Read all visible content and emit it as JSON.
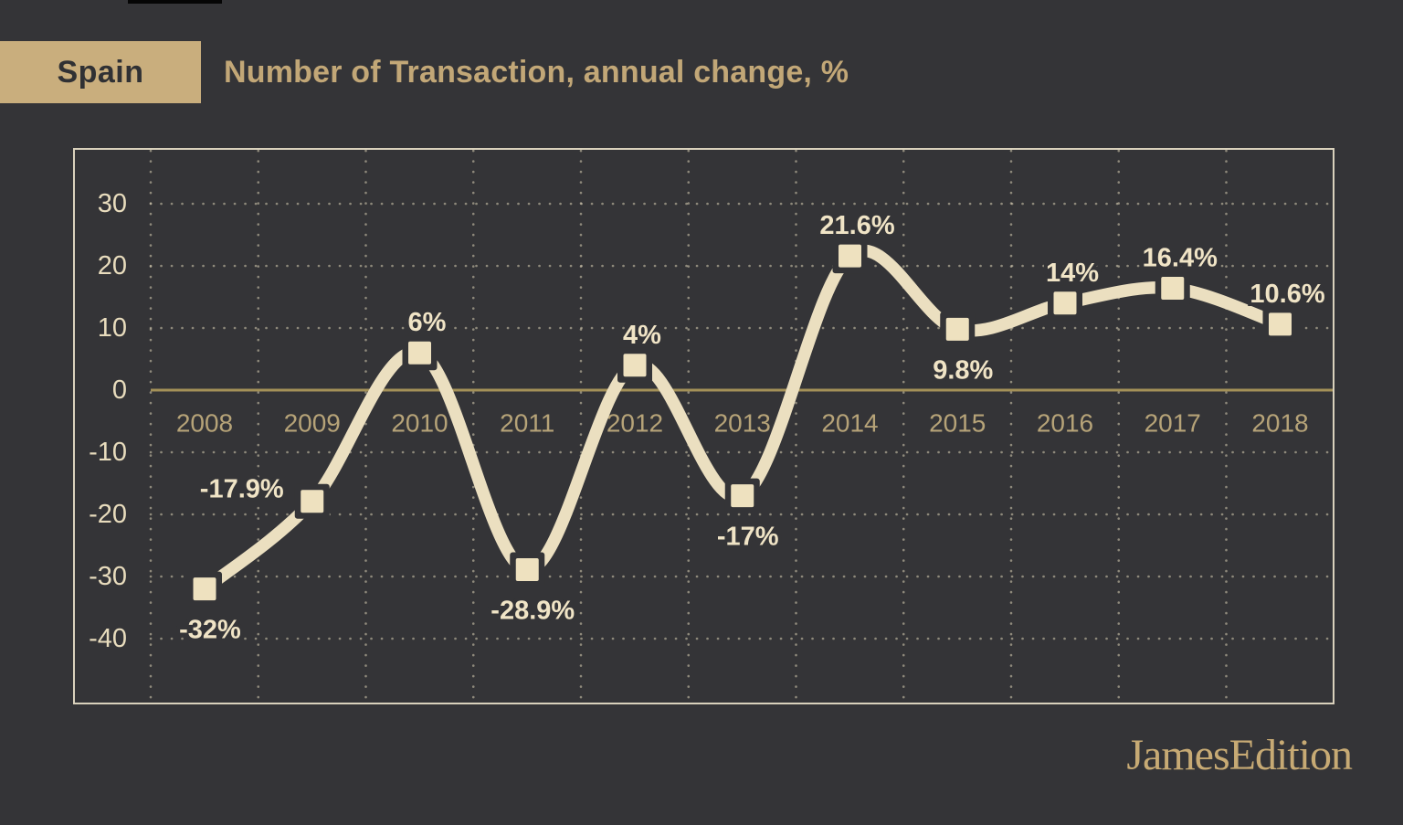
{
  "header": {
    "country": "Spain",
    "title": "Number of Transaction, annual change, %"
  },
  "brand": {
    "name": "JamesEdition"
  },
  "colors": {
    "background": "#343437",
    "strip_black": "#050505",
    "accent": "#c9ae7d",
    "chip_text": "#303134",
    "title_tan": "#c2a777",
    "frame": "#d9d1bc",
    "grid_dots": "#d9cfb4",
    "zero_line": "#a49158",
    "line_cream": "#ebdfc0",
    "marker_cream": "#eee1bf",
    "value_label_cream": "#f0e4c6",
    "tick_cream": "#e8dcbd",
    "year_tan": "#b6a378",
    "logo_tan": "#c7aa74"
  },
  "chart_data": {
    "type": "line",
    "title": "Number of Transaction, annual change, %",
    "series_name": "Spain",
    "categories": [
      "2008",
      "2009",
      "2010",
      "2011",
      "2012",
      "2013",
      "2014",
      "2015",
      "2016",
      "2017",
      "2018"
    ],
    "values": [
      -32,
      -17.9,
      6,
      -28.9,
      4,
      -17,
      21.6,
      9.8,
      14,
      16.4,
      10.6
    ],
    "point_labels": [
      "-32%",
      "-17.9%",
      "6%",
      "-28.9%",
      "4%",
      "-17%",
      "21.6%",
      "9.8%",
      "14%",
      "16.4%",
      "10.6%"
    ],
    "label_positions": [
      "below",
      "left",
      "above",
      "below",
      "above",
      "below",
      "above",
      "below",
      "above",
      "above",
      "above"
    ],
    "y_ticks": [
      30,
      20,
      10,
      0,
      -10,
      -20,
      -30,
      -40
    ],
    "ylim": [
      -50,
      38.5
    ],
    "xlabel": "",
    "ylabel": "",
    "grid": "dotted",
    "zero_line": true,
    "marker": "square",
    "legend": "none",
    "line_style": "smooth"
  }
}
